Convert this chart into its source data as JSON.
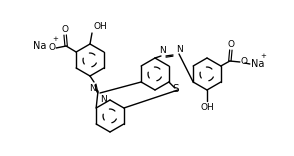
{
  "background": "#ffffff",
  "line_color": "#000000",
  "line_width": 1.0,
  "font_size": 6.5,
  "figsize": [
    2.94,
    1.56
  ],
  "dpi": 100,
  "xlim": [
    0,
    294
  ],
  "ylim": [
    0,
    156
  ]
}
